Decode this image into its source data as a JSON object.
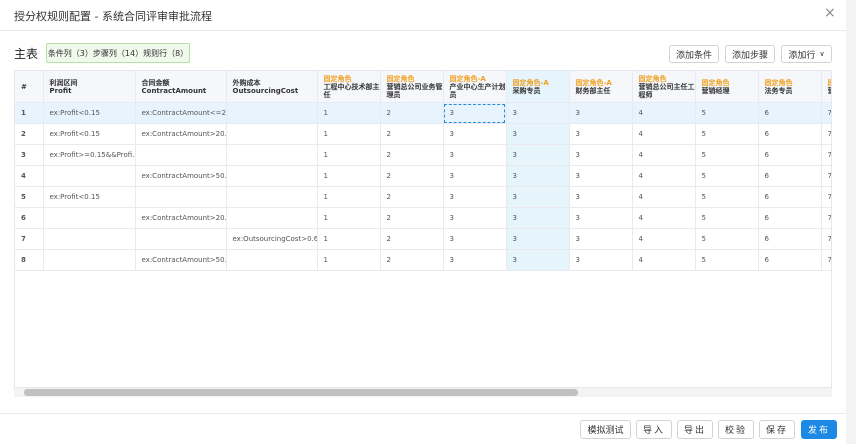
{
  "header": {
    "title": "授分权规则配置 - 系统合同评审审批流程"
  },
  "section": {
    "title": "主表",
    "summary": "条件列（3）步骤列（14）规则行（8）"
  },
  "toolbar": [
    "添加条件",
    "添加步骤",
    "添加行"
  ],
  "table": {
    "columns": [
      {
        "label": "#"
      },
      {
        "label": "利润区间",
        "field": "Profit"
      },
      {
        "label": "合同金额",
        "field": "ContractAmount"
      },
      {
        "label": "外购成本",
        "field": "OutsourcingCost"
      },
      {
        "role": "固定角色",
        "label": "工程中心技术部主任"
      },
      {
        "role": "固定角色",
        "label": "营销总公司业务管理员"
      },
      {
        "role": "固定角色-A",
        "label": "产业中心生产计划员"
      },
      {
        "role": "固定角色-A",
        "label": "采购专员"
      },
      {
        "role": "固定角色-A",
        "label": "财务部主任"
      },
      {
        "role": "固定角色",
        "label": "营销总公司主任工程师"
      },
      {
        "role": "固定角色",
        "label": "营销经理"
      },
      {
        "role": "固定角色",
        "label": "法务专员"
      },
      {
        "role": "固定角色",
        "label": "营"
      }
    ],
    "rows": [
      [
        1,
        "ex:Profit<0.15",
        "ex:ContractAmount<=2...",
        null,
        1,
        2,
        3,
        3,
        3,
        4,
        5,
        6,
        7
      ],
      [
        2,
        "ex:Profit<0.15",
        "ex:ContractAmount>20...",
        null,
        1,
        2,
        3,
        3,
        3,
        4,
        5,
        6,
        7
      ],
      [
        3,
        "ex:Profit>=0.15&&Profi...",
        null,
        null,
        1,
        2,
        3,
        3,
        3,
        4,
        5,
        6,
        7
      ],
      [
        4,
        null,
        "ex:ContractAmount>50...",
        null,
        1,
        2,
        3,
        3,
        3,
        4,
        5,
        6,
        7
      ],
      [
        5,
        "ex:Profit<0.15",
        null,
        null,
        1,
        2,
        3,
        3,
        3,
        4,
        5,
        6,
        7
      ],
      [
        6,
        null,
        "ex:ContractAmount>20...",
        null,
        1,
        2,
        3,
        3,
        3,
        4,
        5,
        6,
        7
      ],
      [
        7,
        null,
        null,
        "ex:OutsourcingCost>0.6",
        1,
        2,
        3,
        3,
        3,
        4,
        5,
        6,
        7
      ],
      [
        8,
        null,
        "ex:ContractAmount>50...",
        null,
        1,
        2,
        3,
        3,
        3,
        4,
        5,
        6,
        7
      ]
    ]
  },
  "footer": [
    "模拟测试",
    "导入",
    "导出",
    "校验",
    "保存",
    "发布"
  ]
}
